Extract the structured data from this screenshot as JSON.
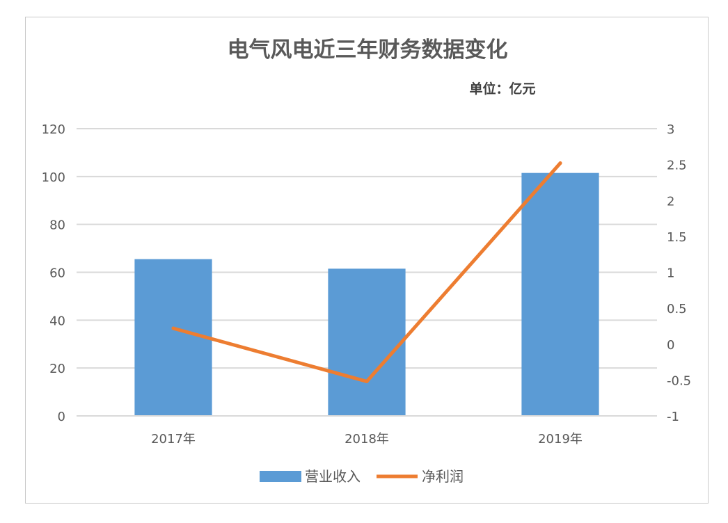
{
  "chart_data": {
    "type": "bar+line",
    "title": "电气风电近三年财务数据变化",
    "unit_label": "单位：亿元",
    "categories": [
      "2017年",
      "2018年",
      "2019年"
    ],
    "series": [
      {
        "name": "营业收入",
        "type": "bar",
        "axis": "left",
        "color": "#5b9bd5",
        "values": [
          65.5,
          61.5,
          101.5
        ]
      },
      {
        "name": "净利润",
        "type": "line",
        "axis": "right",
        "color": "#ed7d31",
        "values": [
          0.22,
          -0.52,
          2.52
        ]
      }
    ],
    "y_left": {
      "min": 0,
      "max": 120,
      "ticks": [
        "0",
        "20",
        "40",
        "60",
        "80",
        "100",
        "120"
      ]
    },
    "y_right": {
      "min": -1,
      "max": 3,
      "ticks": [
        "-1",
        "-0.5",
        "0",
        "0.5",
        "1",
        "1.5",
        "2",
        "2.5",
        "3"
      ]
    },
    "grid": true,
    "legend": "bottom"
  }
}
